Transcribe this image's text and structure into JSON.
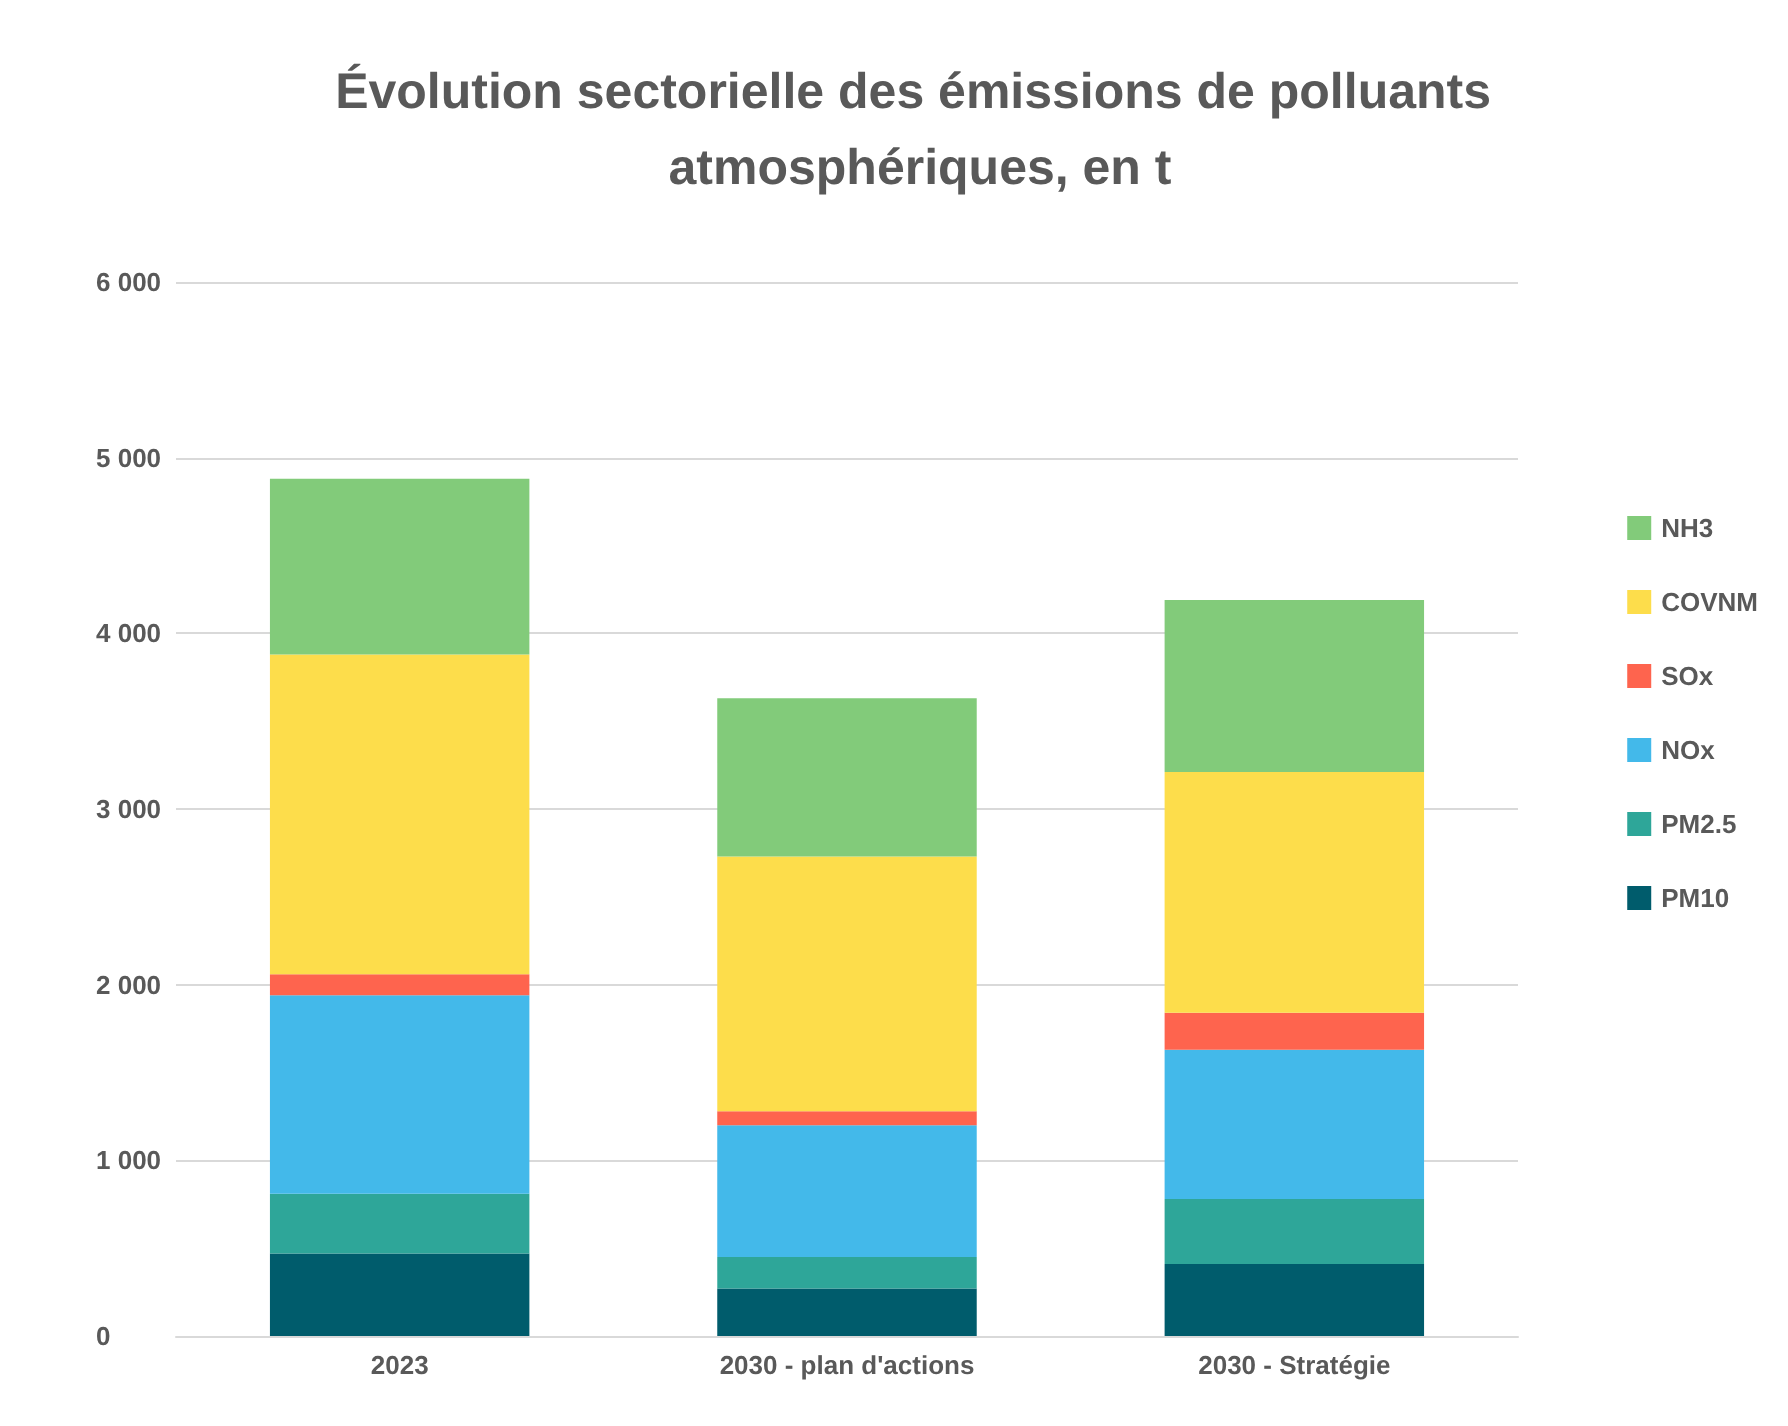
{
  "chart_data": {
    "type": "bar",
    "title": "Évolution sectorielle des émissions de polluants atmosphériques, en t",
    "categories": [
      "2023",
      "2030 - plan d'actions",
      "2030 - Stratégie"
    ],
    "stacked": true,
    "series": [
      {
        "name": "PM10",
        "color": "#005c6c",
        "values": [
          470,
          270,
          410
        ]
      },
      {
        "name": "PM2.5",
        "color": "#2ea699",
        "values": [
          340,
          180,
          370
        ]
      },
      {
        "name": "NOx",
        "color": "#43b9ea",
        "values": [
          1130,
          750,
          850
        ]
      },
      {
        "name": "SOx",
        "color": "#fe644e",
        "values": [
          120,
          80,
          210
        ]
      },
      {
        "name": "COVNM",
        "color": "#fddd4b",
        "values": [
          1820,
          1450,
          1370
        ]
      },
      {
        "name": "NH3",
        "color": "#82cb7a",
        "values": [
          1000,
          900,
          980
        ]
      }
    ],
    "ylim": [
      0,
      6000
    ],
    "yticks": [
      {
        "value": 0,
        "label": "0"
      },
      {
        "value": 1000,
        "label": "1 000"
      },
      {
        "value": 2000,
        "label": "2 000"
      },
      {
        "value": 3000,
        "label": "3 000"
      },
      {
        "value": 4000,
        "label": "4 000"
      },
      {
        "value": 5000,
        "label": "5 000"
      },
      {
        "value": 6000,
        "label": "6 000"
      }
    ],
    "grid": "y",
    "legend": "right"
  }
}
